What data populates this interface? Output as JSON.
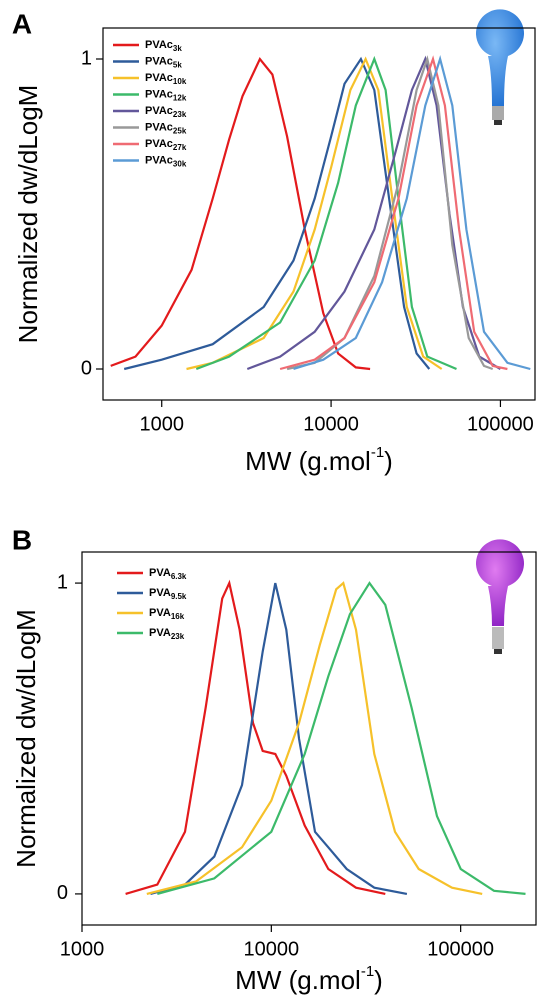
{
  "chart_data": [
    {
      "type": "line",
      "panel_label": "A",
      "y_label": "Normalized dw/dLogM",
      "x_label": [
        "MW (g.mol",
        "-1",
        ")"
      ],
      "log_x": true,
      "xlim": [
        450,
        160000
      ],
      "ylim": [
        -0.1,
        1.1
      ],
      "xticks": [
        1000,
        10000,
        100000
      ],
      "yticks": [
        0,
        1
      ],
      "series": [
        {
          "name": "PVAc",
          "name_sub": "3k",
          "color": "#e31a1c",
          "x": [
            500,
            700,
            1000,
            1500,
            2000,
            2500,
            3000,
            3800,
            4500,
            5500,
            7000,
            9000,
            11000,
            14000,
            17000
          ],
          "values": [
            0.01,
            0.04,
            0.14,
            0.32,
            0.55,
            0.74,
            0.88,
            1,
            0.95,
            0.75,
            0.45,
            0.18,
            0.05,
            0.005,
            0
          ]
        },
        {
          "name": "PVAc",
          "name_sub": "5k",
          "color": "#2e5b9a",
          "x": [
            600,
            1000,
            2000,
            4000,
            6000,
            8000,
            10000,
            12000,
            15000,
            18000,
            22000,
            27000,
            32000,
            38000
          ],
          "values": [
            0,
            0.03,
            0.08,
            0.2,
            0.35,
            0.55,
            0.75,
            0.92,
            1,
            0.9,
            0.55,
            0.2,
            0.05,
            0
          ]
        },
        {
          "name": "PVAc",
          "name_sub": "10k",
          "color": "#f6c12a",
          "x": [
            1400,
            2000,
            4000,
            6000,
            8000,
            10000,
            13000,
            16000,
            19000,
            23000,
            28000,
            35000,
            45000
          ],
          "values": [
            0,
            0.02,
            0.1,
            0.25,
            0.45,
            0.65,
            0.9,
            1,
            0.9,
            0.55,
            0.2,
            0.04,
            0
          ]
        },
        {
          "name": "PVAc",
          "name_sub": "12k",
          "color": "#3cba6a",
          "x": [
            1600,
            2500,
            5000,
            8000,
            11000,
            14000,
            18000,
            21000,
            25000,
            30000,
            37000,
            55000
          ],
          "values": [
            0,
            0.04,
            0.15,
            0.35,
            0.6,
            0.85,
            1,
            0.9,
            0.55,
            0.2,
            0.04,
            0
          ]
        },
        {
          "name": "PVAc",
          "name_sub": "23k",
          "color": "#62579a",
          "x": [
            3200,
            5000,
            8000,
            12000,
            18000,
            24000,
            30000,
            36000,
            42000,
            50000,
            60000,
            75000,
            100000
          ],
          "values": [
            0,
            0.04,
            0.12,
            0.25,
            0.45,
            0.7,
            0.9,
            1,
            0.85,
            0.5,
            0.2,
            0.04,
            0
          ]
        },
        {
          "name": "PVAc",
          "name_sub": "25k",
          "color": "#999999",
          "x": [
            5500,
            8000,
            12000,
            18000,
            25000,
            32000,
            37000,
            43000,
            52000,
            65000,
            80000,
            90000
          ],
          "values": [
            0,
            0.02,
            0.1,
            0.3,
            0.6,
            0.9,
            1,
            0.85,
            0.4,
            0.1,
            0.01,
            0
          ]
        },
        {
          "name": "PVAc",
          "name_sub": "27k",
          "color": "#ef6b73",
          "x": [
            5000,
            8000,
            12000,
            18000,
            25000,
            32000,
            40000,
            47000,
            57000,
            70000,
            90000,
            110000
          ],
          "values": [
            0,
            0.03,
            0.1,
            0.28,
            0.55,
            0.85,
            1,
            0.85,
            0.45,
            0.12,
            0.01,
            0
          ]
        },
        {
          "name": "PVAc",
          "name_sub": "30k",
          "color": "#5b9bd5",
          "x": [
            6000,
            9000,
            14000,
            20000,
            28000,
            36000,
            44000,
            52000,
            63000,
            80000,
            110000,
            150000
          ],
          "values": [
            0,
            0.03,
            0.1,
            0.28,
            0.55,
            0.85,
            1,
            0.85,
            0.45,
            0.12,
            0.02,
            0
          ]
        }
      ]
    },
    {
      "type": "line",
      "panel_label": "B",
      "y_label": "Normalized dw/dLogM",
      "x_label": [
        "MW (g.mol",
        "-1",
        ")"
      ],
      "log_x": true,
      "xlim": [
        1000,
        250000
      ],
      "ylim": [
        -0.1,
        1.1
      ],
      "xticks": [
        1000,
        10000,
        100000
      ],
      "yticks": [
        0,
        1
      ],
      "series": [
        {
          "name": "PVA",
          "name_sub": "6.3k",
          "color": "#e31a1c",
          "x": [
            1700,
            2500,
            3500,
            4500,
            5500,
            6000,
            6800,
            8000,
            9000,
            10500,
            12000,
            15000,
            20000,
            28000,
            40000
          ],
          "values": [
            0,
            0.03,
            0.2,
            0.6,
            0.95,
            1,
            0.85,
            0.55,
            0.46,
            0.45,
            0.38,
            0.22,
            0.08,
            0.02,
            0
          ]
        },
        {
          "name": "PVA",
          "name_sub": "9.5k",
          "color": "#2e5b9a",
          "x": [
            2300,
            3500,
            5000,
            7000,
            9000,
            10500,
            12000,
            14000,
            17000,
            20000,
            25000,
            35000,
            52000
          ],
          "values": [
            0,
            0.03,
            0.12,
            0.35,
            0.78,
            1,
            0.85,
            0.5,
            0.2,
            0.15,
            0.08,
            0.02,
            0
          ]
        },
        {
          "name": "PVA",
          "name_sub": "16k",
          "color": "#f6c12a",
          "x": [
            2200,
            4000,
            7000,
            10000,
            14000,
            18000,
            22000,
            24000,
            28000,
            35000,
            45000,
            60000,
            90000,
            130000
          ],
          "values": [
            0,
            0.04,
            0.15,
            0.3,
            0.55,
            0.8,
            0.98,
            1,
            0.85,
            0.45,
            0.2,
            0.08,
            0.02,
            0
          ]
        },
        {
          "name": "PVA",
          "name_sub": "23k",
          "color": "#3cba6a",
          "x": [
            2500,
            5000,
            10000,
            15000,
            20000,
            26000,
            33000,
            40000,
            55000,
            75000,
            100000,
            150000,
            220000
          ],
          "values": [
            0,
            0.05,
            0.2,
            0.45,
            0.7,
            0.9,
            1,
            0.93,
            0.6,
            0.25,
            0.08,
            0.01,
            0
          ]
        }
      ]
    }
  ]
}
